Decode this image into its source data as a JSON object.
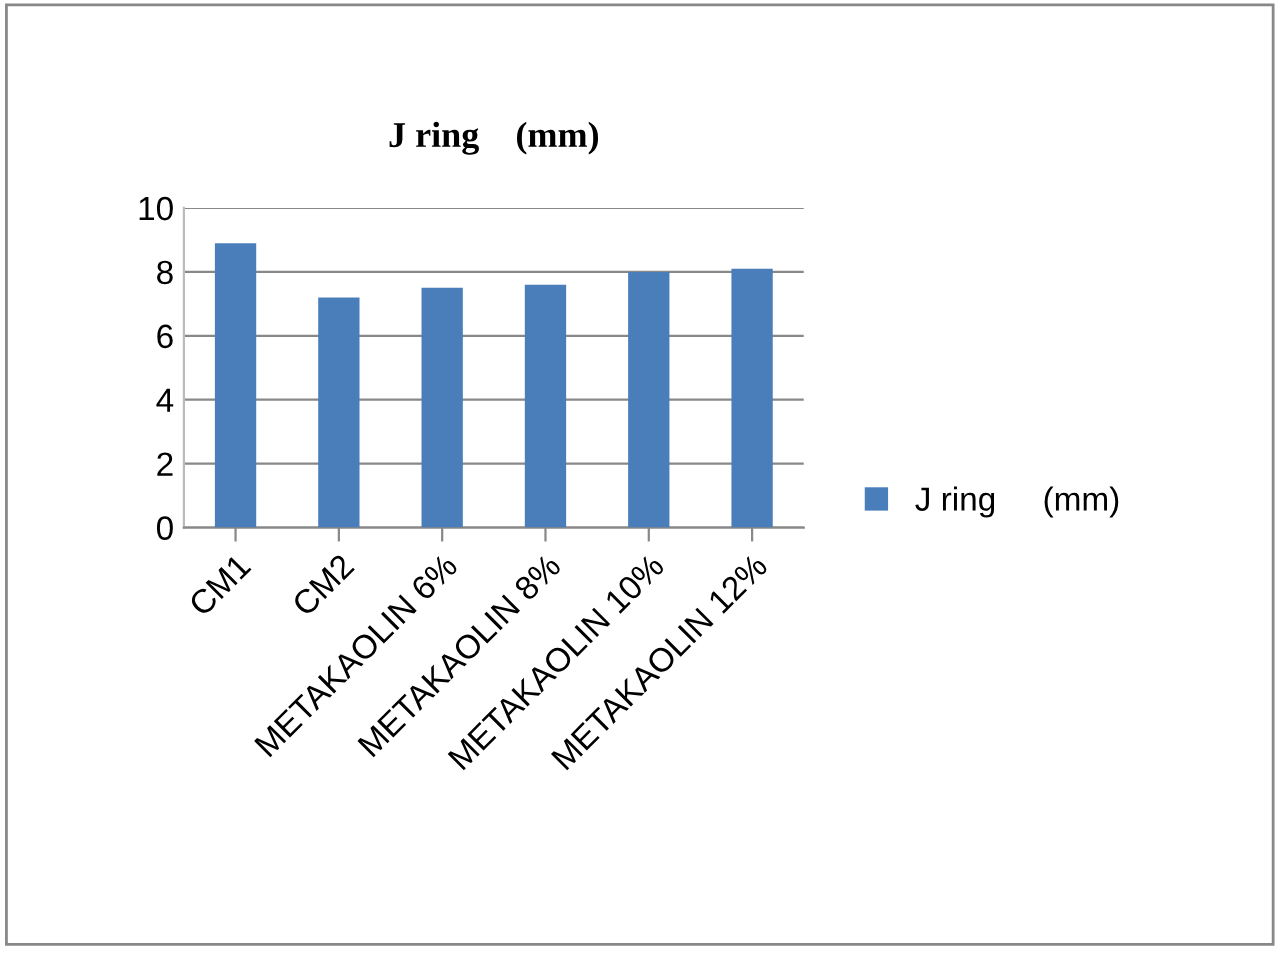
{
  "chart_data": {
    "type": "bar",
    "title": "J ring    (mm)",
    "categories": [
      "CM1",
      "CM2",
      "METAKAOLIN 6%",
      "METAKAOLIN 8%",
      "METAKAOLIN 10%",
      "METAKAOLIN 12%"
    ],
    "series": [
      {
        "name": "J ring     (mm)",
        "color": "#4a7ebb",
        "values": [
          8.9,
          7.2,
          7.5,
          7.6,
          8.0,
          8.1
        ]
      }
    ],
    "ylim": [
      0,
      10
    ],
    "yticks": [
      0,
      2,
      4,
      6,
      8,
      10
    ],
    "grid": "y",
    "legend": "right"
  }
}
